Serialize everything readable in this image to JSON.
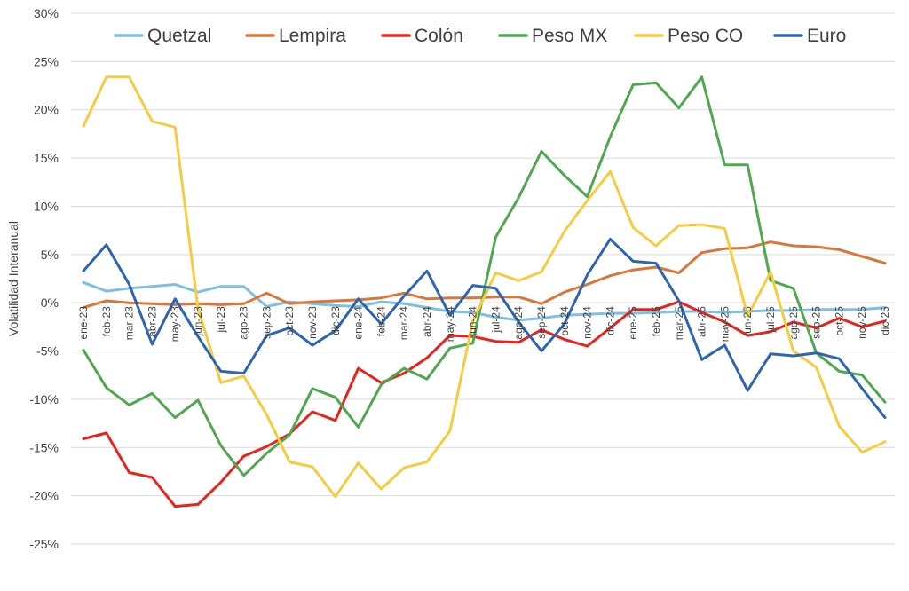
{
  "chart_data": {
    "type": "line",
    "title": "",
    "xlabel": "",
    "ylabel": "Volatilidad Interanual",
    "ylim": [
      -25,
      30
    ],
    "ytick_step": 5,
    "y_tick_labels": [
      "-25%",
      "-20%",
      "-15%",
      "-10%",
      "-5%",
      "0%",
      "5%",
      "10%",
      "15%",
      "20%",
      "25%",
      "30%"
    ],
    "grid": "horizontal",
    "legend_position": "top",
    "categories": [
      "ene-23",
      "feb-23",
      "mar-23",
      "abr-23",
      "may-23",
      "jun-23",
      "jul-23",
      "ago-23",
      "sep-23",
      "oct-23",
      "nov-23",
      "dic-23",
      "ene-24",
      "feb-24",
      "mar-24",
      "abr-24",
      "may-24",
      "jun-24",
      "jul-24",
      "ago-24",
      "sep-24",
      "oct-24",
      "nov-24",
      "dic-24",
      "ene-25",
      "feb-25",
      "mar-25",
      "abr-25",
      "may-25",
      "jun-25",
      "jul-25",
      "ago-25",
      "sep-25",
      "oct-25",
      "nov-25",
      "dic-25"
    ],
    "series": [
      {
        "name": "Quetzal",
        "color": "#7fbfe0",
        "values": [
          2.1,
          1.2,
          1.5,
          1.7,
          1.9,
          1.1,
          1.7,
          1.7,
          -0.4,
          0.1,
          -0.1,
          -0.3,
          -0.4,
          0.1,
          -0.1,
          -0.5,
          -0.9,
          -1.0,
          -1.5,
          -1.8,
          -1.6,
          -1.3,
          -1.2,
          -1.1,
          -1.1,
          -1.0,
          -0.9,
          -0.9,
          -1.0,
          -0.9,
          -0.8,
          -0.8,
          -0.7,
          -0.7,
          -0.7,
          -0.5
        ]
      },
      {
        "name": "Lempira",
        "color": "#d9763a",
        "values": [
          -0.5,
          0.2,
          0.0,
          -0.1,
          -0.2,
          -0.1,
          -0.2,
          -0.1,
          1.0,
          -0.1,
          0.1,
          0.2,
          0.3,
          0.5,
          1.0,
          0.4,
          0.5,
          0.5,
          0.6,
          0.6,
          -0.1,
          1.1,
          1.9,
          2.8,
          3.4,
          3.7,
          3.1,
          5.2,
          5.6,
          5.7,
          6.3,
          5.9,
          5.8,
          5.5,
          4.8,
          4.1
        ]
      },
      {
        "name": "Colón",
        "color": "#e8231c",
        "values": [
          -14.1,
          -13.5,
          -17.6,
          -18.1,
          -21.1,
          -20.9,
          -18.6,
          -15.9,
          -14.9,
          -13.6,
          -11.3,
          -12.2,
          -6.8,
          -8.3,
          -7.3,
          -5.7,
          -3.4,
          -3.5,
          -4.0,
          -4.1,
          -2.8,
          -3.8,
          -4.5,
          -2.6,
          -0.7,
          -0.7,
          0.1,
          -1.0,
          -2.0,
          -3.4,
          -3.0,
          -2.0,
          -2.6,
          -1.6,
          -2.5,
          -1.9
        ]
      },
      {
        "name": "Peso MX",
        "color": "#4fa84f",
        "values": [
          -4.9,
          -8.8,
          -10.6,
          -9.4,
          -11.9,
          -10.1,
          -14.8,
          -17.9,
          -15.6,
          -13.7,
          -8.9,
          -9.8,
          -12.9,
          -8.5,
          -6.8,
          -7.9,
          -4.7,
          -4.2,
          6.8,
          10.9,
          15.7,
          13.2,
          11.0,
          17.2,
          22.6,
          22.8,
          20.2,
          23.4,
          14.3,
          14.3,
          2.3,
          1.5,
          -5.2,
          -7.1,
          -7.5,
          -10.3
        ]
      },
      {
        "name": "Peso CO",
        "color": "#f5cc41",
        "values": [
          18.3,
          23.4,
          23.4,
          18.8,
          18.2,
          -0.6,
          -8.3,
          -7.6,
          -11.6,
          -16.5,
          -17.0,
          -20.1,
          -16.6,
          -19.3,
          -17.1,
          -16.5,
          -13.3,
          -1.9,
          3.1,
          2.3,
          3.2,
          7.4,
          10.6,
          13.6,
          7.8,
          5.9,
          8.0,
          8.1,
          7.7,
          -1.4,
          3.2,
          -5.0,
          -6.7,
          -12.8,
          -15.5,
          -14.4
        ]
      },
      {
        "name": "Euro",
        "color": "#2e65b2",
        "values": [
          3.3,
          6.0,
          1.9,
          -4.3,
          0.4,
          -3.5,
          -7.1,
          -7.3,
          -3.4,
          -2.6,
          -4.4,
          -2.9,
          0.4,
          -2.2,
          0.7,
          3.3,
          -1.3,
          1.8,
          1.5,
          -2.0,
          -5.0,
          -2.2,
          2.9,
          6.6,
          4.3,
          4.1,
          0.2,
          -5.9,
          -4.4,
          -9.1,
          -5.3,
          -5.5,
          -5.2,
          -5.8,
          -8.9,
          -11.9
        ]
      }
    ]
  }
}
